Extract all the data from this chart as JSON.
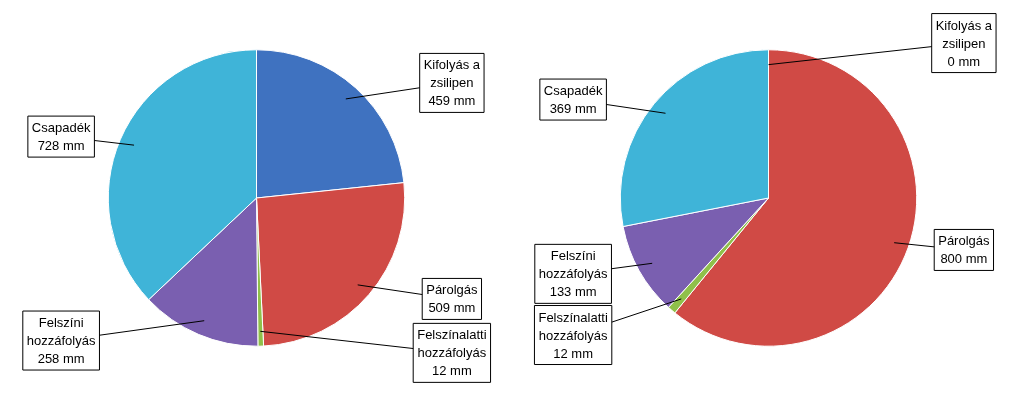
{
  "chart_data": [
    {
      "type": "pie",
      "categories": [
        "Kifolyás a zsilipen",
        "Párolgás",
        "Felszínalatti hozzáfolyás",
        "Felszíni hozzáfolyás",
        "Csapadék"
      ],
      "values": [
        459,
        509,
        12,
        258,
        728
      ],
      "value_labels": [
        "459 mm",
        "509 mm",
        "12 mm",
        "258 mm",
        "728 mm"
      ],
      "colors": [
        "#3f72c0",
        "#d04a45",
        "#8fc04a",
        "#7a5fb0",
        "#3fb4d8"
      ],
      "legend": false
    },
    {
      "type": "pie",
      "categories": [
        "Kifolyás a zsilipen",
        "Párolgás",
        "Felszínalatti hozzáfolyás",
        "Felszíni hozzáfolyás",
        "Csapadék"
      ],
      "values": [
        0,
        800,
        12,
        133,
        369
      ],
      "value_labels": [
        "0 mm",
        "800 mm",
        "12 mm",
        "133 mm",
        "369 mm"
      ],
      "colors": [
        "#3f72c0",
        "#d04a45",
        "#8fc04a",
        "#7a5fb0",
        "#3fb4d8"
      ],
      "legend": false
    }
  ]
}
